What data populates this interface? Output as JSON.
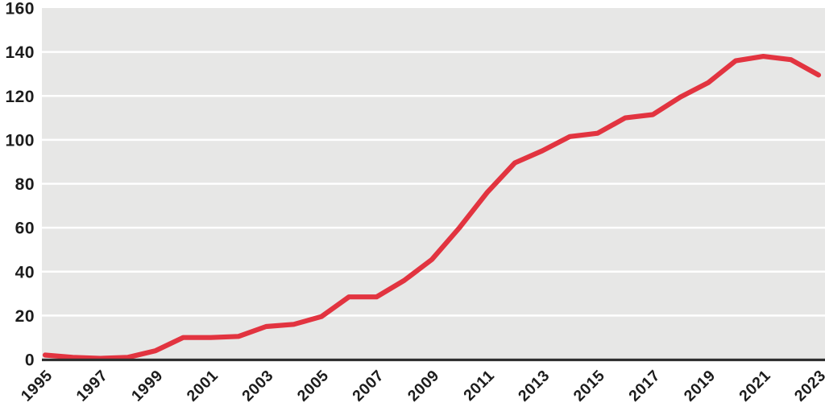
{
  "chart_data": {
    "type": "line",
    "title": "",
    "xlabel": "",
    "ylabel": "",
    "x": [
      1995,
      1996,
      1997,
      1998,
      1999,
      2000,
      2001,
      2002,
      2003,
      2004,
      2005,
      2006,
      2007,
      2008,
      2009,
      2010,
      2011,
      2012,
      2013,
      2014,
      2015,
      2016,
      2017,
      2018,
      2019,
      2020,
      2021,
      2022,
      2023
    ],
    "values": [
      2,
      1,
      0.5,
      1,
      4,
      10,
      10,
      10.5,
      15,
      16,
      19.5,
      28.5,
      28.5,
      36,
      45.5,
      60,
      76,
      89.5,
      95,
      101.5,
      103,
      110,
      111.5,
      119.5,
      126,
      136,
      138,
      136.5,
      129.5
    ],
    "x_tick_labels": [
      "1995",
      "1997",
      "1999",
      "2001",
      "2003",
      "2005",
      "2007",
      "2009",
      "2011",
      "2013",
      "2015",
      "2017",
      "2019",
      "2021",
      "2023"
    ],
    "y_tick_labels": [
      "0",
      "20",
      "40",
      "60",
      "80",
      "100",
      "120",
      "140",
      "160"
    ],
    "y_ticks": [
      0,
      20,
      40,
      60,
      80,
      100,
      120,
      140,
      160
    ],
    "ylim": [
      0,
      160
    ],
    "xlim": [
      1995,
      2023
    ],
    "grid": "horizontal",
    "legend": "none",
    "colors": {
      "line": "#e23440",
      "plot_background": "#e7e7e6",
      "gridline": "#ffffff",
      "axis_line": "#2f2f2f",
      "label_text": "#1c1c1c",
      "page_background": "#ffffff"
    }
  }
}
